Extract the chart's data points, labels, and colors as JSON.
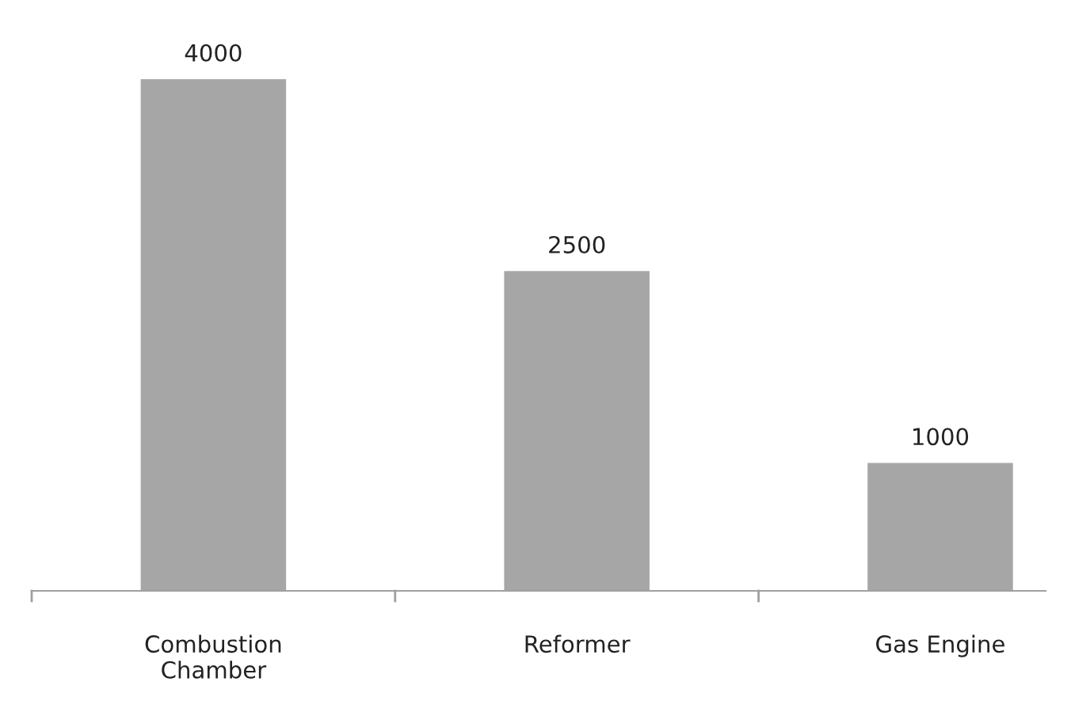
{
  "chart_data": {
    "type": "bar",
    "categories": [
      "Combustion\nChamber",
      "Reformer",
      "Gas Engine"
    ],
    "values": [
      4000,
      2500,
      1000
    ],
    "color": "#a6a6a6",
    "data_labels": true,
    "grid": false
  }
}
